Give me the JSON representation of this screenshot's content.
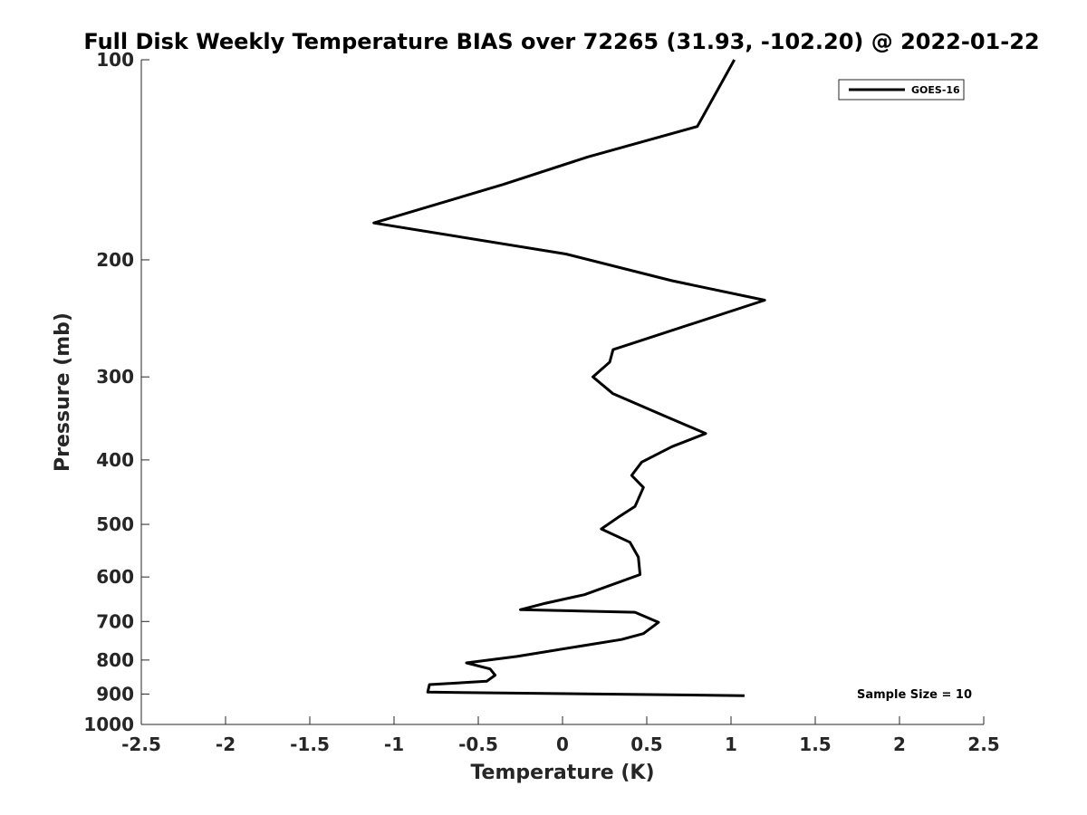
{
  "chart_data": {
    "type": "line",
    "title": "Full Disk Weekly Temperature BIAS over 72265 (31.93, -102.20) @ 2022-01-22",
    "xlabel": "Temperature (K)",
    "ylabel": "Pressure (mb)",
    "xlim": [
      -2.5,
      2.5
    ],
    "ylim": [
      100,
      1000
    ],
    "y_scale": "log",
    "y_reversed": true,
    "x_ticks": [
      "-2.5",
      "-2",
      "-1.5",
      "-1",
      "-0.5",
      "0",
      "0.5",
      "1",
      "1.5",
      "2",
      "2.5"
    ],
    "y_ticks": [
      "100",
      "200",
      "300",
      "400",
      "500",
      "600",
      "700",
      "800",
      "900",
      "1000"
    ],
    "grid": false,
    "legend_position": "top-right",
    "annotation": "Sample Size = 10",
    "series": [
      {
        "name": "GOES-16",
        "color": "#000000",
        "x": [
          1.02,
          0.8,
          0.15,
          -0.35,
          -1.12,
          0.02,
          0.65,
          1.2,
          0.3,
          0.28,
          0.18,
          0.3,
          0.6,
          0.85,
          0.65,
          0.47,
          0.41,
          0.48,
          0.43,
          0.33,
          0.23,
          0.4,
          0.45,
          0.46,
          0.13,
          -0.1,
          -0.25,
          0.43,
          0.57,
          0.48,
          0.35,
          0.14,
          -0.27,
          -0.57,
          -0.43,
          -0.4,
          -0.45,
          -0.79,
          -0.8,
          1.08
        ],
        "y": [
          100,
          126,
          140,
          154,
          176,
          196,
          215,
          230,
          273,
          285,
          300,
          318,
          343,
          365,
          382,
          403,
          422,
          440,
          470,
          488,
          508,
          532,
          560,
          595,
          638,
          657,
          672,
          678,
          702,
          730,
          745,
          760,
          790,
          808,
          825,
          843,
          861,
          871,
          894,
          905
        ]
      }
    ]
  }
}
